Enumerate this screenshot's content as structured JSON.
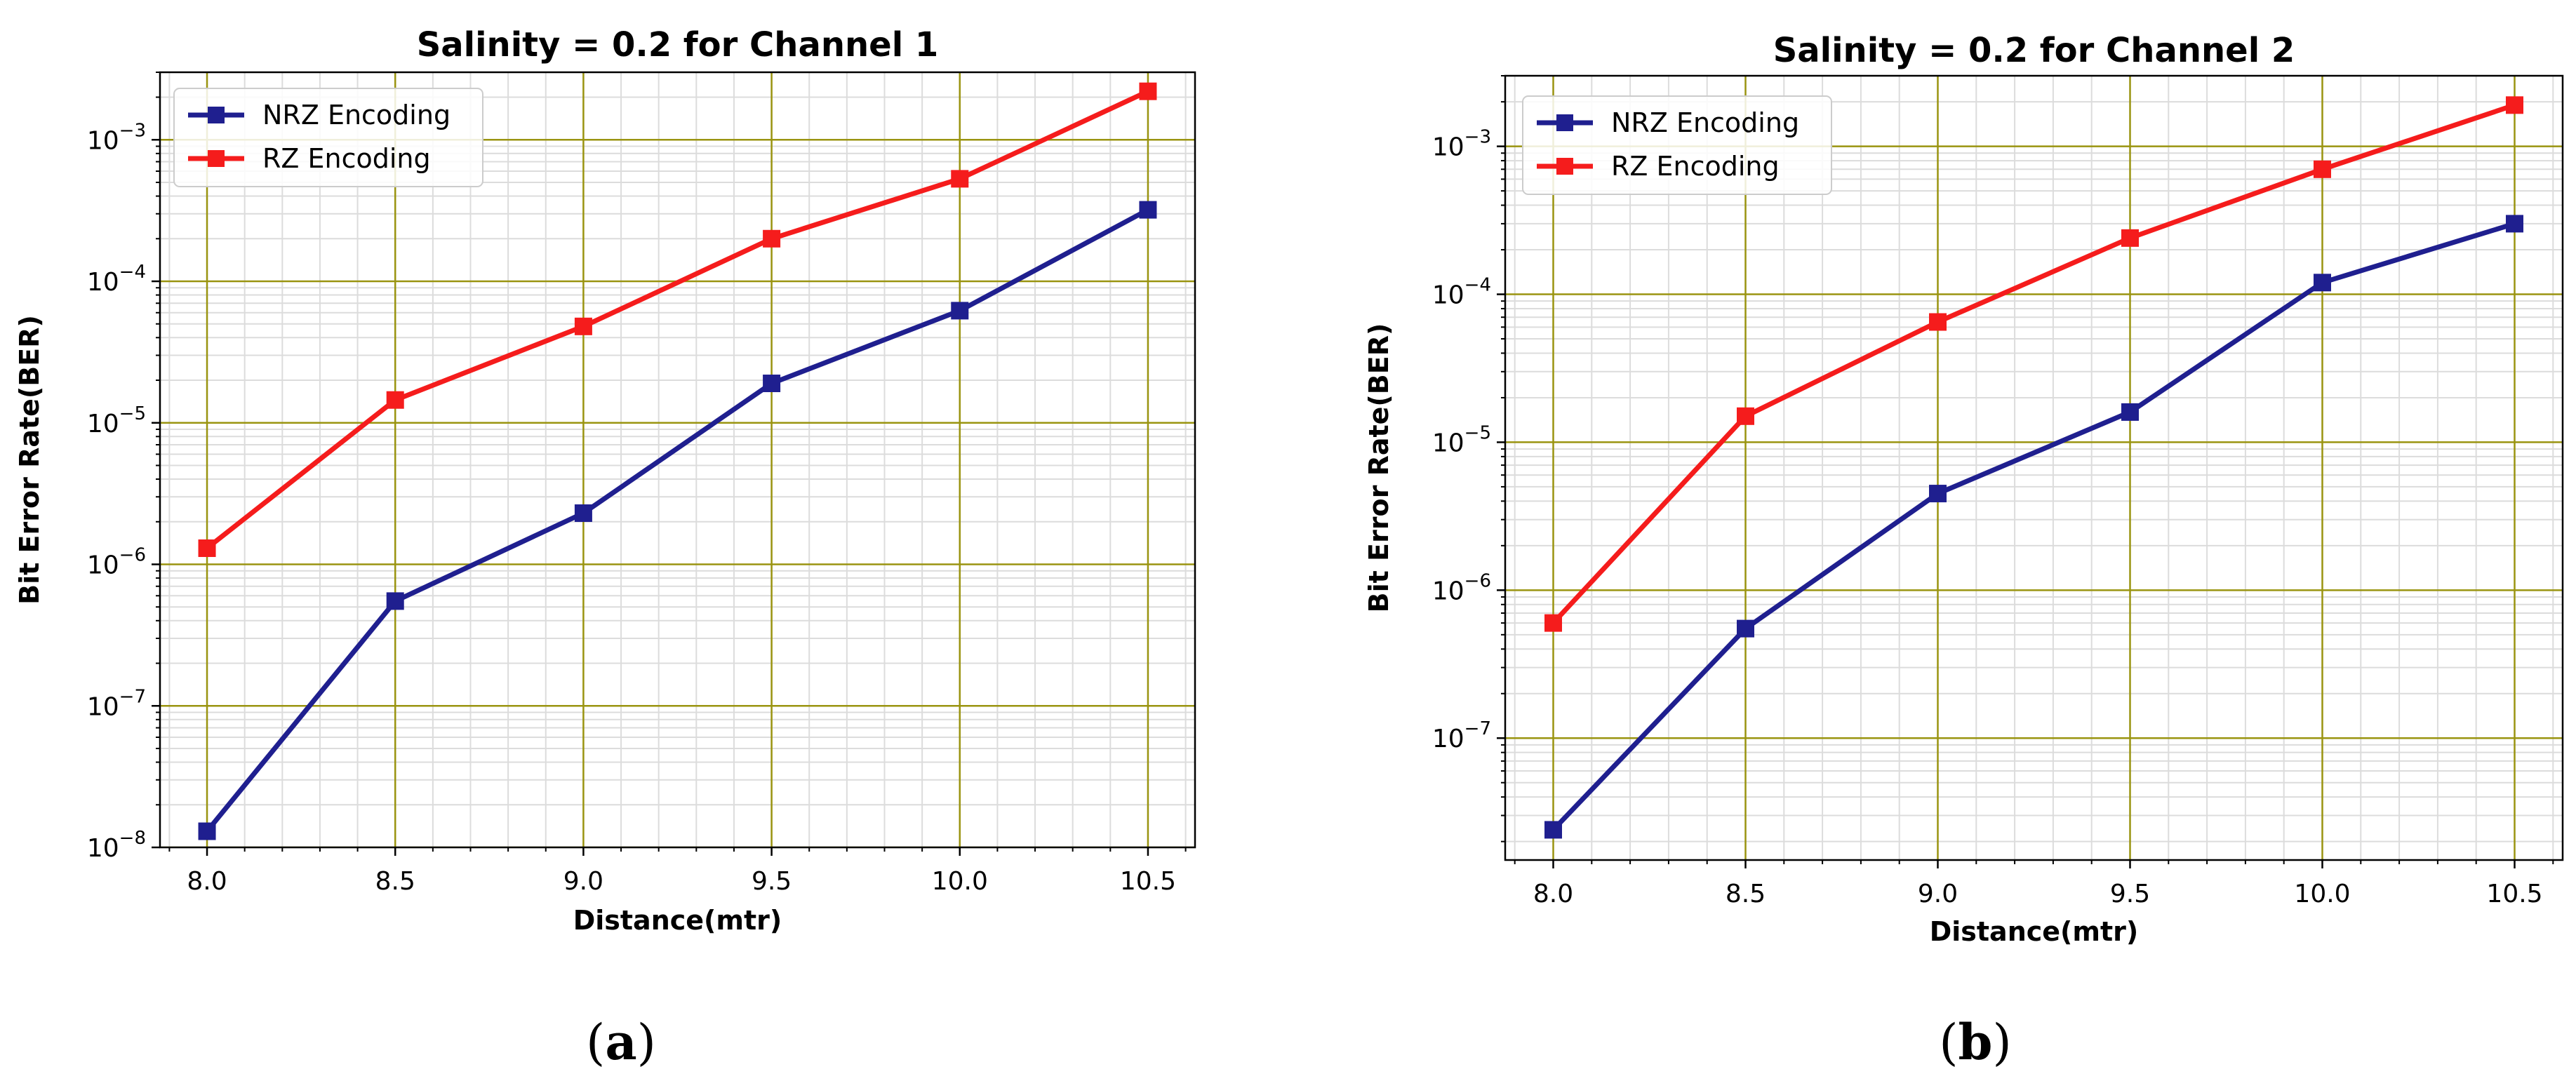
{
  "chart_data": [
    {
      "type": "line",
      "panel_label": "(a)",
      "title": "Salinity = 0.2 for Channel 1",
      "xlabel": "Distance(mtr)",
      "ylabel": "Bit Error Rate(BER)",
      "yscale": "log",
      "x": [
        8.0,
        8.5,
        9.0,
        9.5,
        10.0,
        10.5
      ],
      "x_tick_labels": [
        "8.0",
        "8.5",
        "9.0",
        "9.5",
        "10.0",
        "10.5"
      ],
      "y_tick_exponents": [
        -8,
        -7,
        -6,
        -5,
        -4,
        -3
      ],
      "xlim": [
        7.875,
        10.625
      ],
      "ylim": [
        1e-08,
        0.003
      ],
      "grid": true,
      "legend_position": "top-left",
      "series": [
        {
          "name": "NRZ Encoding",
          "color": "#1f1f8f",
          "values": [
            1.3e-08,
            5.5e-07,
            2.3e-06,
            1.9e-05,
            6.2e-05,
            0.00032
          ]
        },
        {
          "name": "RZ Encoding",
          "color": "#f51c1c",
          "values": [
            1.3e-06,
            1.45e-05,
            4.8e-05,
            0.0002,
            0.00053,
            0.0022
          ]
        }
      ]
    },
    {
      "type": "line",
      "panel_label": "(b)",
      "title": "Salinity = 0.2 for Channel 2",
      "xlabel": "Distance(mtr)",
      "ylabel": "Bit Error Rate(BER)",
      "yscale": "log",
      "x": [
        8.0,
        8.5,
        9.0,
        9.5,
        10.0,
        10.5
      ],
      "x_tick_labels": [
        "8.0",
        "8.5",
        "9.0",
        "9.5",
        "10.0",
        "10.5"
      ],
      "y_tick_exponents": [
        -7,
        -6,
        -5,
        -4,
        -3
      ],
      "xlim": [
        7.875,
        10.625
      ],
      "ylim": [
        1.5e-08,
        0.003
      ],
      "grid": true,
      "legend_position": "top-left",
      "series": [
        {
          "name": "NRZ Encoding",
          "color": "#1f1f8f",
          "values": [
            2.4e-08,
            5.5e-07,
            4.5e-06,
            1.6e-05,
            0.00012,
            0.0003
          ]
        },
        {
          "name": "RZ Encoding",
          "color": "#f51c1c",
          "values": [
            6e-07,
            1.5e-05,
            6.5e-05,
            0.00024,
            0.0007,
            0.0019
          ]
        }
      ]
    }
  ]
}
